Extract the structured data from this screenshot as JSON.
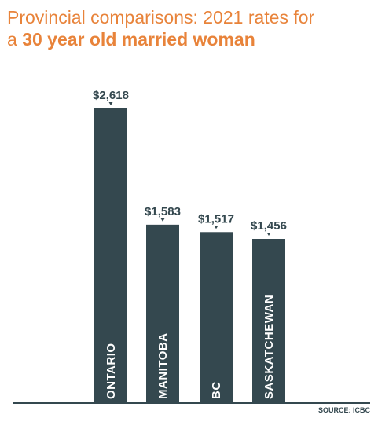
{
  "header": {
    "title_line_1": "Provincial comparisons: 2021 rates for",
    "title_line_2_prefix": "a ",
    "title_line_2_emphasis": "30 year old married woman"
  },
  "footer": {
    "source": "SOURCE: ICBC"
  },
  "colors": {
    "bar": "#34484f",
    "title": "#e8833a",
    "label": "#ffffff",
    "baseline": "#34484f"
  },
  "chart_data": {
    "type": "bar",
    "title": "Provincial comparisons: 2021 rates for a 30 year old married woman",
    "categories": [
      "ONTARIO",
      "MANITOBA",
      "BC",
      "SASKATCHEWAN"
    ],
    "values": [
      2618,
      1583,
      1517,
      1456
    ],
    "value_labels": [
      "$2,618",
      "$1,583",
      "$1,517",
      "$1,456"
    ],
    "ylim": [
      0,
      2618
    ],
    "grid": false,
    "legend": "none",
    "source": "SOURCE: ICBC"
  }
}
